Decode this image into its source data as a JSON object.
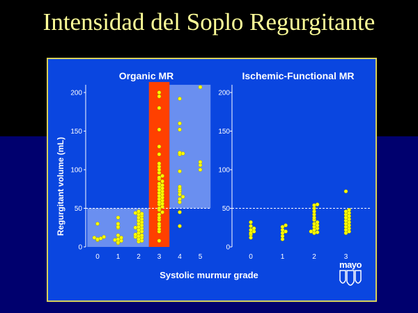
{
  "slide": {
    "title": "Intensidad del Soplo Regurgitante"
  },
  "logo": {
    "text": "mayo"
  },
  "colors": {
    "background_top": "#000000",
    "background_bottom": "#00006e",
    "panel": "#0a46e0",
    "highlight_region": "#6a8ff0",
    "highlight_column": "#ff4000",
    "points": "#ffff00",
    "title": "#ffff99",
    "border": "#d8d05a"
  },
  "chart_data": [
    {
      "type": "scatter",
      "title": "Organic MR",
      "ylabel": "Regurgitant volume (mL)",
      "xlabel": "Systolic murmur grade",
      "x_ticks": [
        "0",
        "1",
        "2",
        "3",
        "4",
        "5"
      ],
      "y_ticks": [
        "0",
        "50",
        "100",
        "150",
        "200"
      ],
      "xlim": [
        -0.5,
        5.5
      ],
      "ylim": [
        0,
        210
      ],
      "reference_line_y": 50,
      "points_by_grade": [
        {
          "grade": 0,
          "values": [
            30,
            13,
            12,
            11,
            10,
            9
          ]
        },
        {
          "grade": 1,
          "values": [
            38,
            30,
            26,
            25,
            15,
            12,
            10,
            9,
            8,
            6,
            5
          ]
        },
        {
          "grade": 2,
          "values": [
            46,
            44,
            43,
            42,
            40,
            38,
            36,
            34,
            32,
            30,
            28,
            26,
            25,
            24,
            22,
            20,
            18,
            16,
            15,
            14,
            13,
            12,
            10,
            8,
            7
          ]
        },
        {
          "grade": 3,
          "values": [
            200,
            195,
            180,
            152,
            130,
            120,
            108,
            104,
            100,
            96,
            92,
            90,
            88,
            85,
            82,
            80,
            78,
            76,
            74,
            72,
            70,
            68,
            66,
            64,
            62,
            60,
            58,
            56,
            55,
            52,
            50,
            48,
            45,
            42,
            38,
            35,
            30,
            27,
            23,
            20,
            8
          ]
        },
        {
          "grade": 4,
          "values": [
            192,
            160,
            152,
            122,
            121,
            120,
            98,
            78,
            75,
            72,
            68,
            65,
            62,
            58,
            45,
            27
          ]
        },
        {
          "grade": 5,
          "values": [
            207,
            110,
            106,
            100
          ]
        }
      ]
    },
    {
      "type": "scatter",
      "title": "Ischemic-Functional MR",
      "xlabel": "Systolic murmur grade",
      "x_ticks": [
        "0",
        "1",
        "2",
        "3"
      ],
      "y_ticks": [
        "0",
        "50",
        "100",
        "150",
        "200"
      ],
      "xlim": [
        -0.5,
        3.5
      ],
      "ylim": [
        0,
        210
      ],
      "reference_line_y": 50,
      "points_by_grade": [
        {
          "grade": 0,
          "values": [
            32,
            27,
            24,
            22,
            20,
            18,
            16,
            12
          ]
        },
        {
          "grade": 1,
          "values": [
            28,
            26,
            22,
            20,
            18,
            14,
            10
          ]
        },
        {
          "grade": 2,
          "values": [
            55,
            54,
            50,
            46,
            42,
            38,
            35,
            32,
            30,
            28,
            26,
            24,
            22,
            20,
            19,
            18
          ]
        },
        {
          "grade": 3,
          "values": [
            72,
            48,
            46,
            44,
            42,
            40,
            38,
            36,
            34,
            32,
            30,
            28,
            26,
            24,
            22,
            20,
            18
          ]
        }
      ]
    }
  ]
}
